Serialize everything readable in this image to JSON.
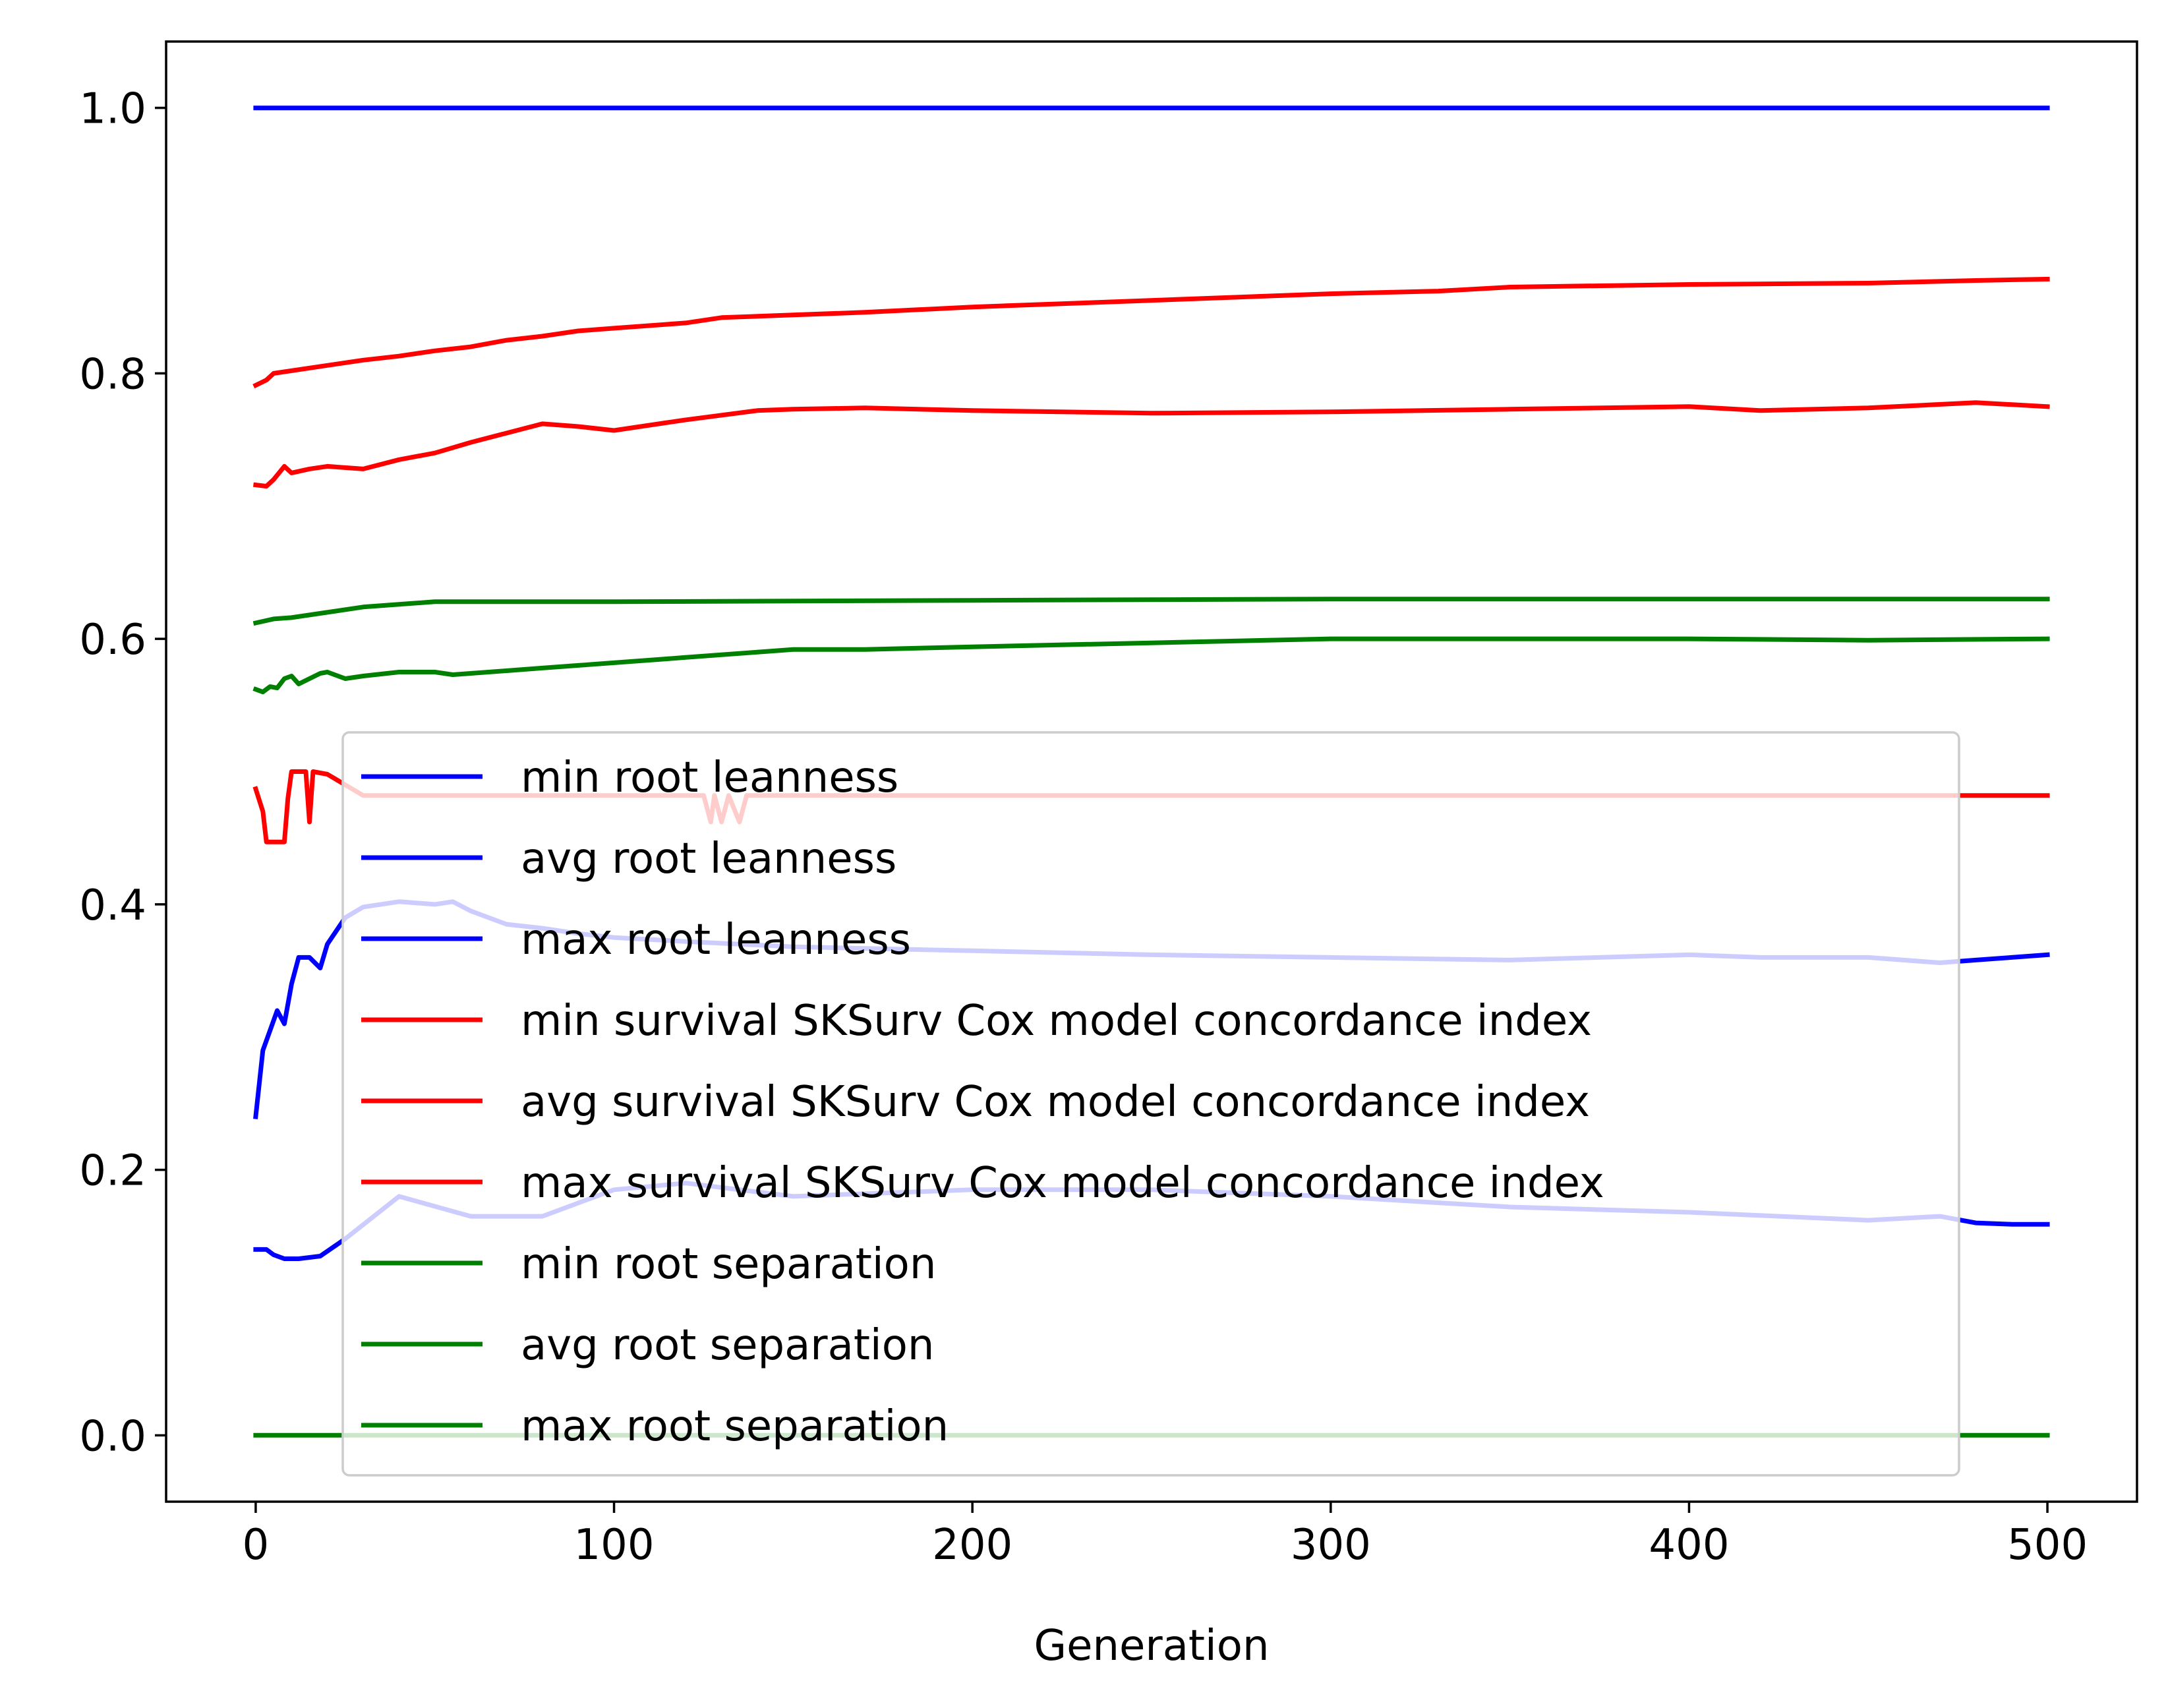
{
  "chart_data": {
    "type": "line",
    "title": "",
    "xlabel": "Generation",
    "ylabel": "",
    "xlim": [
      -25,
      525
    ],
    "ylim": [
      -0.05,
      1.05
    ],
    "xticks": [
      0,
      100,
      200,
      300,
      400,
      500
    ],
    "yticks": [
      0.0,
      0.2,
      0.4,
      0.6,
      0.8,
      1.0
    ],
    "xtick_labels": [
      "0",
      "100",
      "200",
      "300",
      "400",
      "500"
    ],
    "ytick_labels": [
      "0.0",
      "0.2",
      "0.4",
      "0.6",
      "0.8",
      "1.0"
    ],
    "grid": false,
    "legend_position": "lower-center",
    "series": [
      {
        "name": "min root leanness",
        "color": "#0000ff",
        "x": [
          0,
          3,
          5,
          8,
          12,
          18,
          25,
          40,
          60,
          80,
          100,
          120,
          150,
          200,
          250,
          300,
          350,
          400,
          450,
          470,
          480,
          490,
          500
        ],
        "y": [
          0.14,
          0.14,
          0.136,
          0.133,
          0.133,
          0.135,
          0.148,
          0.18,
          0.165,
          0.165,
          0.185,
          0.19,
          0.18,
          0.185,
          0.185,
          0.18,
          0.172,
          0.168,
          0.162,
          0.165,
          0.16,
          0.159,
          0.159
        ]
      },
      {
        "name": "avg root leanness",
        "color": "#0000ff",
        "x": [
          0,
          2,
          4,
          6,
          8,
          10,
          12,
          15,
          18,
          20,
          25,
          30,
          40,
          50,
          55,
          60,
          70,
          80,
          90,
          100,
          120,
          150,
          200,
          250,
          300,
          350,
          400,
          420,
          450,
          470,
          480,
          490,
          500
        ],
        "y": [
          0.24,
          0.29,
          0.305,
          0.32,
          0.31,
          0.34,
          0.36,
          0.36,
          0.352,
          0.37,
          0.39,
          0.398,
          0.402,
          0.4,
          0.402,
          0.395,
          0.385,
          0.382,
          0.378,
          0.375,
          0.372,
          0.368,
          0.365,
          0.362,
          0.36,
          0.358,
          0.362,
          0.36,
          0.36,
          0.356,
          0.358,
          0.36,
          0.362
        ]
      },
      {
        "name": "max root leanness",
        "color": "#0000ff",
        "x": [
          0,
          500
        ],
        "y": [
          1.0,
          1.0
        ]
      },
      {
        "name": "min survival SKSurv Cox model concordance index",
        "color": "#ff0000",
        "x": [
          0,
          2,
          3,
          6,
          8,
          9,
          10,
          14,
          15,
          16,
          20,
          30,
          40,
          60,
          80,
          100,
          120,
          125,
          127,
          128,
          130,
          132,
          135,
          137,
          138,
          150,
          200,
          300,
          400,
          500
        ],
        "y": [
          0.487,
          0.47,
          0.447,
          0.447,
          0.447,
          0.48,
          0.5,
          0.5,
          0.462,
          0.5,
          0.498,
          0.482,
          0.482,
          0.482,
          0.482,
          0.482,
          0.482,
          0.482,
          0.462,
          0.482,
          0.462,
          0.482,
          0.462,
          0.482,
          0.482,
          0.482,
          0.482,
          0.482,
          0.482,
          0.482
        ]
      },
      {
        "name": "avg survival SKSurv Cox model concordance index",
        "color": "#ff0000",
        "x": [
          0,
          3,
          5,
          8,
          10,
          15,
          20,
          30,
          40,
          50,
          60,
          70,
          80,
          90,
          100,
          120,
          140,
          150,
          170,
          200,
          250,
          300,
          350,
          400,
          420,
          450,
          480,
          500
        ],
        "y": [
          0.716,
          0.715,
          0.72,
          0.73,
          0.725,
          0.728,
          0.73,
          0.728,
          0.735,
          0.74,
          0.748,
          0.755,
          0.762,
          0.76,
          0.757,
          0.765,
          0.772,
          0.773,
          0.774,
          0.772,
          0.77,
          0.771,
          0.773,
          0.775,
          0.772,
          0.774,
          0.778,
          0.775
        ]
      },
      {
        "name": "max survival SKSurv Cox model concordance index",
        "color": "#ff0000",
        "x": [
          0,
          3,
          5,
          10,
          20,
          30,
          40,
          50,
          60,
          70,
          80,
          90,
          100,
          120,
          130,
          150,
          170,
          200,
          230,
          270,
          300,
          330,
          350,
          400,
          450,
          480,
          500
        ],
        "y": [
          0.791,
          0.795,
          0.8,
          0.802,
          0.806,
          0.81,
          0.813,
          0.817,
          0.82,
          0.825,
          0.828,
          0.832,
          0.834,
          0.838,
          0.842,
          0.844,
          0.846,
          0.85,
          0.853,
          0.857,
          0.86,
          0.862,
          0.865,
          0.867,
          0.868,
          0.87,
          0.871
        ]
      },
      {
        "name": "min root separation",
        "color": "#008000",
        "x": [
          0,
          500
        ],
        "y": [
          0.0,
          0.0
        ]
      },
      {
        "name": "avg root separation",
        "color": "#008000",
        "x": [
          0,
          2,
          4,
          6,
          8,
          10,
          12,
          15,
          18,
          20,
          25,
          30,
          40,
          50,
          55,
          60,
          70,
          80,
          90,
          100,
          110,
          120,
          130,
          140,
          150,
          170,
          200,
          250,
          300,
          350,
          400,
          450,
          500
        ],
        "y": [
          0.562,
          0.56,
          0.564,
          0.563,
          0.57,
          0.572,
          0.566,
          0.57,
          0.574,
          0.575,
          0.57,
          0.572,
          0.575,
          0.575,
          0.573,
          0.574,
          0.576,
          0.578,
          0.58,
          0.582,
          0.584,
          0.586,
          0.588,
          0.59,
          0.592,
          0.592,
          0.594,
          0.597,
          0.6,
          0.6,
          0.6,
          0.599,
          0.6
        ]
      },
      {
        "name": "max root separation",
        "color": "#008000",
        "x": [
          0,
          5,
          10,
          20,
          30,
          40,
          50,
          100,
          200,
          300,
          400,
          500
        ],
        "y": [
          0.612,
          0.615,
          0.616,
          0.62,
          0.624,
          0.626,
          0.628,
          0.628,
          0.629,
          0.63,
          0.63,
          0.63
        ]
      }
    ]
  }
}
